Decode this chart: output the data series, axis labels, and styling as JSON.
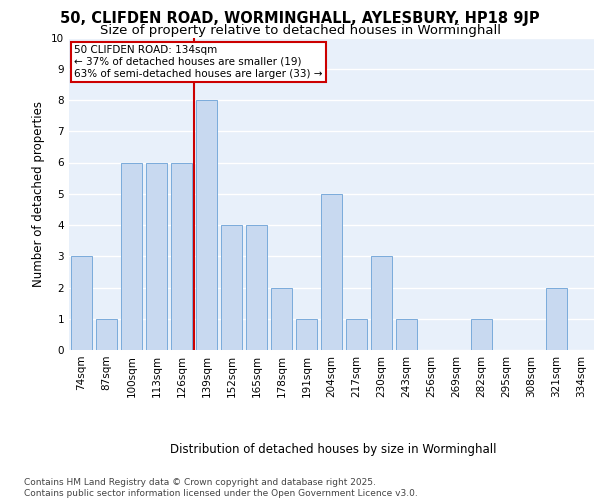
{
  "title1": "50, CLIFDEN ROAD, WORMINGHALL, AYLESBURY, HP18 9JP",
  "title2": "Size of property relative to detached houses in Worminghall",
  "xlabel": "Distribution of detached houses by size in Worminghall",
  "ylabel": "Number of detached properties",
  "categories": [
    "74sqm",
    "87sqm",
    "100sqm",
    "113sqm",
    "126sqm",
    "139sqm",
    "152sqm",
    "165sqm",
    "178sqm",
    "191sqm",
    "204sqm",
    "217sqm",
    "230sqm",
    "243sqm",
    "256sqm",
    "269sqm",
    "282sqm",
    "295sqm",
    "308sqm",
    "321sqm",
    "334sqm"
  ],
  "values": [
    3,
    1,
    6,
    6,
    6,
    8,
    4,
    4,
    2,
    1,
    5,
    1,
    3,
    1,
    0,
    0,
    1,
    0,
    0,
    2,
    0
  ],
  "bar_color": "#c8d9f0",
  "bar_edgecolor": "#7aabdb",
  "background_color": "#e8f0fa",
  "grid_color": "#ffffff",
  "annotation_text": "50 CLIFDEN ROAD: 134sqm\n← 37% of detached houses are smaller (19)\n63% of semi-detached houses are larger (33) →",
  "annotation_box_facecolor": "#ffffff",
  "annotation_box_edgecolor": "#cc0000",
  "redline_x": 4.5,
  "ylim": [
    0,
    10
  ],
  "yticks": [
    0,
    1,
    2,
    3,
    4,
    5,
    6,
    7,
    8,
    9,
    10
  ],
  "footer": "Contains HM Land Registry data © Crown copyright and database right 2025.\nContains public sector information licensed under the Open Government Licence v3.0.",
  "title_fontsize": 10.5,
  "subtitle_fontsize": 9.5,
  "axis_label_fontsize": 8.5,
  "tick_fontsize": 7.5,
  "annotation_fontsize": 7.5,
  "footer_fontsize": 6.5
}
